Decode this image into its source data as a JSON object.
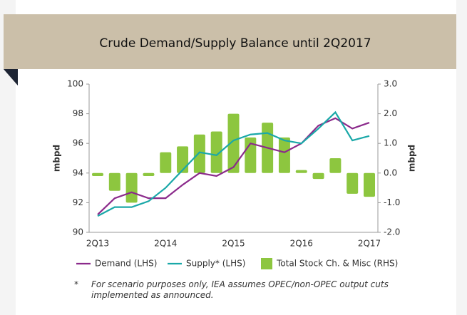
{
  "chart_data": {
    "type": "line_bar",
    "title": "Crude Demand/Supply Balance until 2Q2017",
    "y_label": "mbpd",
    "y2_label": "mbpd",
    "categories": [
      "2Q13",
      null,
      null,
      null,
      "2Q14",
      null,
      null,
      null,
      "2Q15",
      null,
      null,
      null,
      "2Q16",
      null,
      null,
      null,
      "2Q17"
    ],
    "series": [
      {
        "name": "Demand (LHS)",
        "color": "#8b2a8b",
        "kind": "line",
        "values": [
          91.2,
          92.3,
          92.7,
          92.3,
          92.3,
          93.2,
          94.0,
          93.8,
          94.4,
          96.0,
          95.7,
          95.4,
          96.0,
          97.2,
          97.7,
          97.0,
          97.4
        ]
      },
      {
        "name": "Supply* (LHS)",
        "color": "#1aa8a8",
        "kind": "line",
        "values": [
          91.1,
          91.7,
          91.7,
          92.1,
          93.0,
          94.2,
          95.4,
          95.2,
          96.2,
          96.6,
          96.7,
          96.2,
          96.0,
          97.0,
          98.1,
          96.2,
          96.5
        ]
      },
      {
        "name": "Total Stock Ch. & Misc (RHS)",
        "color": "#8dc63f",
        "kind": "bar",
        "axis": "y2",
        "values": [
          -0.1,
          -0.6,
          -1.0,
          -0.1,
          0.7,
          0.9,
          1.3,
          1.4,
          2.0,
          1.2,
          1.7,
          1.2,
          0.1,
          -0.2,
          0.5,
          -0.7,
          -0.8
        ]
      }
    ],
    "ylim": [
      90,
      100
    ],
    "yticks": [
      90,
      92,
      94,
      96,
      98,
      100
    ],
    "y2lim": [
      -2,
      3
    ],
    "y2ticks": [
      {
        "value": -2,
        "label": "-2.0"
      },
      {
        "value": -1,
        "label": "-1.0"
      },
      {
        "value": 0,
        "label": "0.0"
      },
      {
        "value": 1,
        "label": "1.0"
      },
      {
        "value": 2,
        "label": "2.0"
      },
      {
        "value": 3,
        "label": "3.0"
      }
    ],
    "grid": false,
    "footnote_marker": "*",
    "footnote": "For scenario purposes only, IEA assumes OPEC/non-OPEC output cuts implemented as announced."
  }
}
